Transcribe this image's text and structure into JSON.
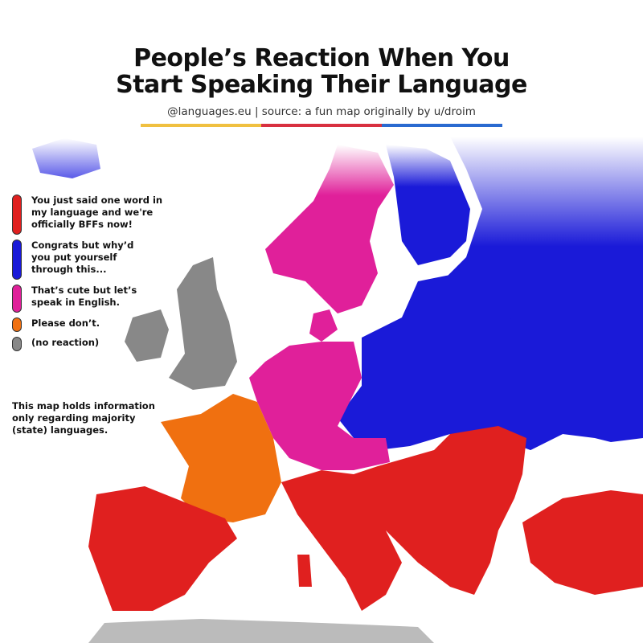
{
  "header": {
    "title_line1": "People’s Reaction When You",
    "title_line2": "Start Speaking Their Language",
    "subtitle": "@languages.eu | source: a fun map originally by u/droim",
    "underline_colors": [
      "#f0c040",
      "#d83040",
      "#2a6ad0"
    ]
  },
  "legend": {
    "items": [
      {
        "label": "You just said one word in my language and we're officially BFFs now!",
        "color": "#e0201f"
      },
      {
        "label": "Congrats but why’d you put yourself through this...",
        "color": "#1a1ad8"
      },
      {
        "label": "That’s cute but let’s speak in English.",
        "color": "#e0209a"
      },
      {
        "label": "Please don’t.",
        "color": "#f07010"
      },
      {
        "label": "(no reaction)",
        "color": "#888888"
      }
    ]
  },
  "note": "This map holds information only regarding majority (state) languages.",
  "regions": [
    {
      "name": "Spain, Portugal, Italy, Balkans, Hungary, Romania, Greece, Turkey",
      "category": "red"
    },
    {
      "name": "Finland, Baltics, Poland, Czechia, Slovakia, Belarus, Ukraine, Russia, Slovenia",
      "category": "blue"
    },
    {
      "name": "Norway, Sweden, Denmark, Germany, Netherlands, Belgium, Austria, Switzerland",
      "category": "pink"
    },
    {
      "name": "France",
      "category": "orange"
    },
    {
      "name": "UK, Ireland",
      "category": "gray"
    }
  ]
}
